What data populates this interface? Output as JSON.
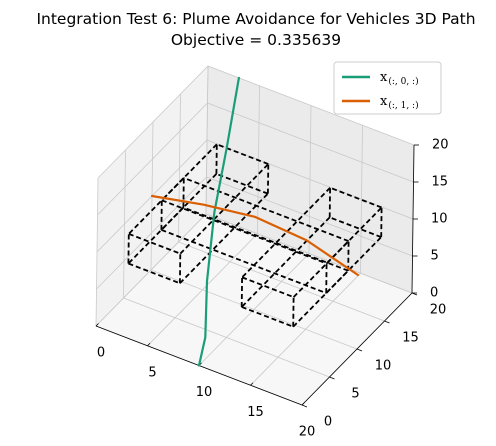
{
  "chart_data": {
    "type": "line",
    "projection": "3d",
    "title": "Integration Test 6: Plume Avoidance for Vehicles 3D Path",
    "subtitle": "Objective = 0.335639",
    "legend_position": "top-right",
    "axes": {
      "x": {
        "ticks": [
          "0",
          "5",
          "10",
          "15",
          "20"
        ],
        "range": [
          0,
          20
        ]
      },
      "y": {
        "ticks": [
          "0",
          "5",
          "10",
          "15",
          "20"
        ],
        "range": [
          0,
          20
        ]
      },
      "z": {
        "ticks": [
          "0",
          "5",
          "10",
          "15",
          "20"
        ],
        "range": [
          0,
          20
        ]
      }
    },
    "grid": true,
    "series": [
      {
        "legend_main": "x",
        "legend_sub": "(:, 0, :)",
        "color": "#1b9e77",
        "points": [
          [
            3,
            20,
            20
          ],
          [
            4,
            16,
            14
          ],
          [
            5,
            12,
            9
          ],
          [
            7,
            7,
            4.5
          ],
          [
            9,
            3,
            1
          ],
          [
            10,
            0,
            0
          ]
        ]
      },
      {
        "legend_main": "x",
        "legend_sub": "(:, 1, :)",
        "color": "#d95f02",
        "points": [
          [
            0,
            10,
            10
          ],
          [
            5,
            10,
            11.5
          ],
          [
            10,
            10,
            12.5
          ],
          [
            15,
            10,
            12
          ],
          [
            20,
            10,
            10
          ]
        ]
      }
    ],
    "obstacles": [
      {
        "x": [
          2,
          7
        ],
        "y": [
          2,
          18
        ],
        "z": [
          8,
          12
        ]
      },
      {
        "x": [
          2,
          18
        ],
        "y": [
          8,
          12
        ],
        "z": [
          8,
          12
        ]
      },
      {
        "x": [
          13,
          18
        ],
        "y": [
          2,
          18
        ],
        "z": [
          8,
          12
        ]
      }
    ]
  }
}
